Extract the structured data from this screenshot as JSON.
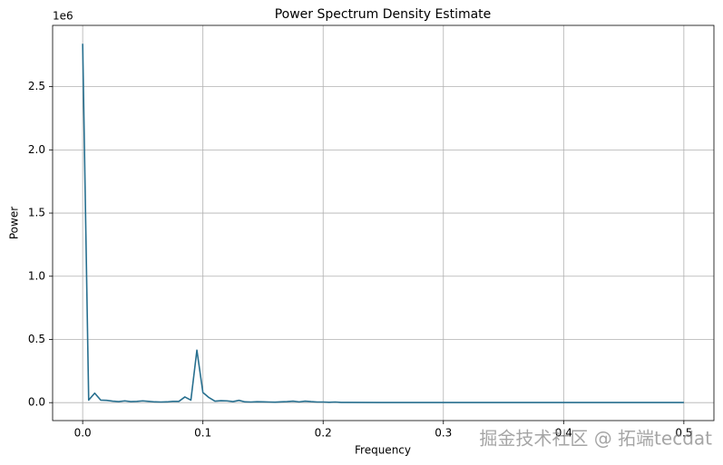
{
  "chart_data": {
    "type": "line",
    "title": "Power Spectrum Density Estimate",
    "x_label": "Frequency",
    "y_label": "Power",
    "y_offset_label": "1e6",
    "watermark": "掘金技术社区 @ 拓端tecdat",
    "color": "#276f8f",
    "grid": true,
    "x": [
      0,
      0.005,
      0.01,
      0.015,
      0.02,
      0.025,
      0.03,
      0.035,
      0.04,
      0.045,
      0.05,
      0.055,
      0.06,
      0.065,
      0.07,
      0.075,
      0.08,
      0.085,
      0.09,
      0.095,
      0.1,
      0.105,
      0.11,
      0.115,
      0.12,
      0.125,
      0.13,
      0.135,
      0.14,
      0.145,
      0.15,
      0.155,
      0.16,
      0.165,
      0.17,
      0.175,
      0.18,
      0.185,
      0.19,
      0.195,
      0.2,
      0.205,
      0.21,
      0.215,
      0.22,
      0.25,
      0.3,
      0.35,
      0.4,
      0.45,
      0.5
    ],
    "values": [
      2840000,
      20000,
      75000,
      20000,
      18000,
      12000,
      8000,
      14000,
      8000,
      10000,
      14000,
      10000,
      6000,
      5000,
      6000,
      10000,
      10000,
      45000,
      20000,
      415000,
      80000,
      40000,
      12000,
      15000,
      14000,
      8000,
      18000,
      6000,
      5000,
      7000,
      6000,
      5000,
      4000,
      6000,
      8000,
      12000,
      6000,
      12000,
      8000,
      5000,
      5000,
      3000,
      5000,
      2000,
      2000,
      1000,
      1000,
      1000,
      1000,
      1000,
      1000
    ],
    "xlim": [
      -0.025,
      0.525
    ],
    "xticks": [
      {
        "value": 0,
        "label": "0.0"
      },
      {
        "value": 0.1,
        "label": "0.1"
      },
      {
        "value": 0.2,
        "label": "0.2"
      },
      {
        "value": 0.3,
        "label": "0.3"
      },
      {
        "value": 0.4,
        "label": "0.4"
      },
      {
        "value": 0.5,
        "label": "0.5"
      }
    ],
    "ylim": [
      -142000,
      2985000
    ],
    "yticks": [
      {
        "value": 0,
        "label": "0.0"
      },
      {
        "value": 500000,
        "label": "0.5"
      },
      {
        "value": 1000000,
        "label": "1.0"
      },
      {
        "value": 1500000,
        "label": "1.5"
      },
      {
        "value": 2000000,
        "label": "2.0"
      },
      {
        "value": 2500000,
        "label": "2.5"
      }
    ]
  }
}
